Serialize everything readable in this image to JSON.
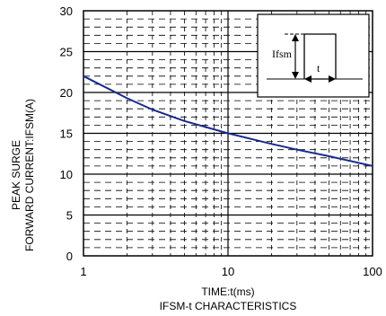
{
  "chart_data": {
    "type": "line",
    "title": "IFSM-t CHARACTERISTICS",
    "xlabel": "TIME:t(ms)",
    "ylabel_line1": "PEAK SURGE",
    "ylabel_line2": "FORWARD CURRENT:IFSM(A)",
    "x_scale": "log",
    "xlim": [
      1,
      100
    ],
    "ylim": [
      0,
      30
    ],
    "x_ticks": [
      1,
      10,
      100
    ],
    "x_tick_labels": [
      "1",
      "10",
      "100"
    ],
    "y_ticks": [
      0,
      5,
      10,
      15,
      20,
      25,
      30
    ],
    "y_tick_labels": [
      "0",
      "5",
      "10",
      "15",
      "20",
      "25",
      "30"
    ],
    "grid": "dashed minor grid with solid major lines",
    "series": [
      {
        "color": "#1a2a8c",
        "x": [
          1,
          2,
          3,
          5,
          10,
          20,
          30,
          50,
          100
        ],
        "y": [
          22,
          19.3,
          17.9,
          16.5,
          15,
          13.7,
          13.0,
          12.2,
          11.0
        ]
      }
    ],
    "inset": {
      "symbol_peak": "Ifsm",
      "symbol_time": "t"
    }
  }
}
